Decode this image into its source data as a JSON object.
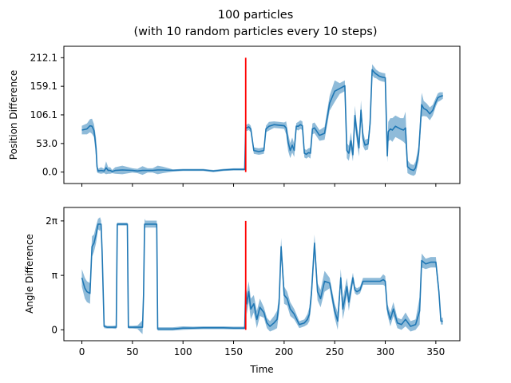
{
  "chart_data": [
    {
      "type": "line",
      "title": "100 particles",
      "subtitle": "(with 10 random particles every 10 steps)",
      "ylabel": "Position Difference",
      "xlabel": "",
      "xlim": [
        -17.8,
        373.8
      ],
      "ylim": [
        -21.2,
        233.3
      ],
      "xticks": [
        0,
        50,
        100,
        150,
        200,
        250,
        300,
        350
      ],
      "yticks": [
        0.0,
        53.0,
        106.1,
        159.1,
        212.1
      ],
      "ytick_labels": [
        "0.0",
        "53.0",
        "106.1",
        "159.1",
        "212.1"
      ],
      "vline": {
        "x": 162,
        "ymin": 0,
        "ymax": 212.1,
        "color": "#ff0000"
      },
      "series_color": "#1f77b4",
      "band_color": "#1f77b4",
      "x": [
        0,
        5,
        8,
        10,
        12,
        14,
        15,
        16,
        19,
        22,
        24,
        26,
        28,
        30,
        33,
        40,
        50,
        55,
        60,
        65,
        70,
        75,
        80,
        90,
        100,
        110,
        120,
        130,
        140,
        150,
        161,
        162,
        163,
        165,
        167,
        170,
        175,
        180,
        182,
        185,
        190,
        195,
        200,
        202,
        204,
        206,
        208,
        210,
        212,
        214,
        216,
        218,
        220,
        222,
        224,
        226,
        228,
        230,
        235,
        240,
        245,
        250,
        255,
        260,
        262,
        264,
        266,
        268,
        270,
        272,
        274,
        276,
        278,
        280,
        283,
        285,
        287,
        289,
        291,
        294,
        297,
        300,
        302,
        303,
        305,
        307,
        310,
        315,
        318,
        320,
        322,
        325,
        328,
        330,
        333,
        336,
        338,
        341,
        344,
        347,
        350,
        352,
        354,
        357
      ],
      "y": [
        78,
        80,
        86,
        85,
        77,
        45,
        10,
        2,
        3,
        2,
        8,
        3,
        3,
        1,
        3,
        4,
        3,
        2,
        3,
        3,
        3,
        4,
        4,
        3,
        4,
        4,
        4,
        2,
        4,
        5,
        5,
        83,
        82,
        84,
        80,
        40,
        38,
        40,
        80,
        85,
        88,
        87,
        86,
        82,
        55,
        40,
        50,
        40,
        85,
        85,
        88,
        86,
        35,
        33,
        36,
        35,
        80,
        82,
        68,
        72,
        128,
        150,
        155,
        160,
        40,
        35,
        58,
        32,
        105,
        70,
        45,
        115,
        62,
        50,
        52,
        90,
        190,
        185,
        182,
        178,
        176,
        175,
        30,
        75,
        80,
        78,
        85,
        80,
        78,
        82,
        10,
        5,
        3,
        8,
        35,
        125,
        118,
        115,
        108,
        115,
        130,
        138,
        140,
        142
      ],
      "band": [
        8,
        10,
        12,
        14,
        12,
        18,
        10,
        4,
        6,
        4,
        12,
        6,
        6,
        3,
        6,
        8,
        4,
        4,
        8,
        4,
        4,
        8,
        6,
        2,
        2,
        2,
        2,
        2,
        2,
        2,
        2,
        6,
        6,
        6,
        6,
        6,
        6,
        6,
        6,
        8,
        6,
        6,
        6,
        12,
        16,
        14,
        14,
        12,
        6,
        8,
        8,
        8,
        8,
        8,
        8,
        10,
        10,
        10,
        10,
        12,
        14,
        20,
        10,
        10,
        14,
        14,
        16,
        12,
        18,
        16,
        16,
        18,
        14,
        10,
        10,
        14,
        10,
        10,
        8,
        8,
        8,
        8,
        12,
        18,
        20,
        22,
        20,
        20,
        22,
        30,
        12,
        10,
        10,
        12,
        14,
        22,
        14,
        12,
        12,
        10,
        8,
        8,
        8,
        6
      ]
    },
    {
      "type": "line",
      "ylabel": "Angle Difference",
      "xlabel": "Time",
      "xlim": [
        -17.8,
        373.8
      ],
      "ylim": [
        -0.628,
        7.06
      ],
      "xticks": [
        0,
        50,
        100,
        150,
        200,
        250,
        300,
        350
      ],
      "xtick_labels": [
        "0",
        "50",
        "100",
        "150",
        "200",
        "250",
        "300",
        "350"
      ],
      "yticks": [
        0,
        3.1416,
        6.2832
      ],
      "ytick_labels": [
        "0",
        "π",
        "2π"
      ],
      "vline": {
        "x": 162,
        "ymin": 0,
        "ymax": 6.2832,
        "color": "#ff0000"
      },
      "series_color": "#1f77b4",
      "band_color": "#1f77b4",
      "x": [
        0,
        3,
        5,
        8,
        10,
        12,
        14,
        16,
        18,
        19,
        20,
        22,
        25,
        30,
        34,
        35,
        36,
        38,
        42,
        45,
        46,
        47,
        50,
        55,
        60,
        61,
        62,
        63,
        65,
        70,
        74,
        75,
        77,
        80,
        90,
        100,
        110,
        120,
        130,
        140,
        150,
        161,
        162,
        163,
        165,
        167,
        170,
        173,
        176,
        180,
        183,
        186,
        190,
        193,
        195,
        197,
        200,
        203,
        206,
        210,
        215,
        220,
        223,
        225,
        227,
        230,
        233,
        236,
        240,
        245,
        250,
        253,
        256,
        258,
        260,
        262,
        264,
        266,
        268,
        270,
        272,
        275,
        278,
        280,
        284,
        286,
        288,
        290,
        292,
        295,
        298,
        300,
        302,
        305,
        308,
        312,
        316,
        320,
        325,
        330,
        334,
        336,
        340,
        345,
        350,
        353,
        355,
        357
      ],
      "y": [
        3.0,
        2.4,
        2.2,
        2.1,
        4.8,
        5.0,
        5.5,
        6.1,
        6.1,
        6.1,
        4.5,
        0.2,
        0.15,
        0.15,
        0.15,
        6.1,
        6.1,
        6.1,
        6.1,
        6.1,
        0.15,
        0.15,
        0.15,
        0.15,
        0.15,
        2.0,
        6.1,
        6.1,
        6.1,
        6.1,
        6.1,
        0.05,
        0.05,
        0.05,
        0.05,
        0.1,
        0.1,
        0.12,
        0.12,
        0.12,
        0.1,
        0.1,
        2.3,
        1.5,
        2.2,
        1.2,
        1.5,
        0.6,
        1.3,
        1.0,
        0.4,
        0.2,
        0.4,
        0.6,
        1.5,
        4.8,
        2.0,
        1.8,
        1.2,
        0.9,
        0.3,
        0.4,
        0.6,
        0.9,
        2.1,
        5.0,
        2.2,
        1.8,
        2.8,
        2.7,
        1.1,
        0.5,
        3.0,
        1.2,
        1.8,
        2.5,
        1.6,
        2.3,
        3.0,
        2.3,
        2.2,
        2.3,
        2.8,
        2.8,
        2.8,
        2.8,
        2.8,
        2.8,
        2.8,
        2.8,
        2.9,
        2.8,
        1.2,
        0.6,
        1.2,
        0.4,
        0.3,
        0.6,
        0.2,
        0.3,
        1.1,
        4.0,
        3.8,
        3.9,
        3.9,
        2.2,
        0.5,
        0.5
      ],
      "band": [
        0.5,
        0.6,
        0.6,
        0.6,
        0.6,
        0.5,
        0.5,
        0.3,
        0.4,
        0.2,
        0.3,
        0.1,
        0.08,
        0.08,
        0.1,
        0.1,
        0.08,
        0.08,
        0.08,
        0.08,
        0.08,
        0.08,
        0.08,
        0.1,
        0.4,
        0.5,
        0.3,
        0.2,
        0.2,
        0.2,
        0.2,
        0.1,
        0.1,
        0.1,
        0.1,
        0.1,
        0.08,
        0.08,
        0.08,
        0.08,
        0.08,
        0.08,
        0.3,
        0.6,
        0.6,
        0.6,
        0.5,
        0.5,
        0.5,
        0.3,
        0.3,
        0.3,
        0.4,
        0.5,
        0.5,
        0.5,
        0.5,
        0.4,
        0.4,
        0.3,
        0.2,
        0.2,
        0.3,
        0.4,
        0.5,
        0.5,
        0.5,
        0.5,
        0.6,
        0.3,
        0.4,
        0.5,
        0.5,
        0.6,
        0.6,
        0.5,
        0.5,
        0.4,
        0.3,
        0.2,
        0.2,
        0.2,
        0.2,
        0.2,
        0.2,
        0.2,
        0.2,
        0.2,
        0.2,
        0.2,
        0.3,
        0.3,
        0.3,
        0.4,
        0.4,
        0.3,
        0.3,
        0.4,
        0.3,
        0.3,
        0.8,
        0.4,
        0.3,
        0.3,
        0.3,
        0.3,
        0.2,
        0.2
      ]
    }
  ]
}
